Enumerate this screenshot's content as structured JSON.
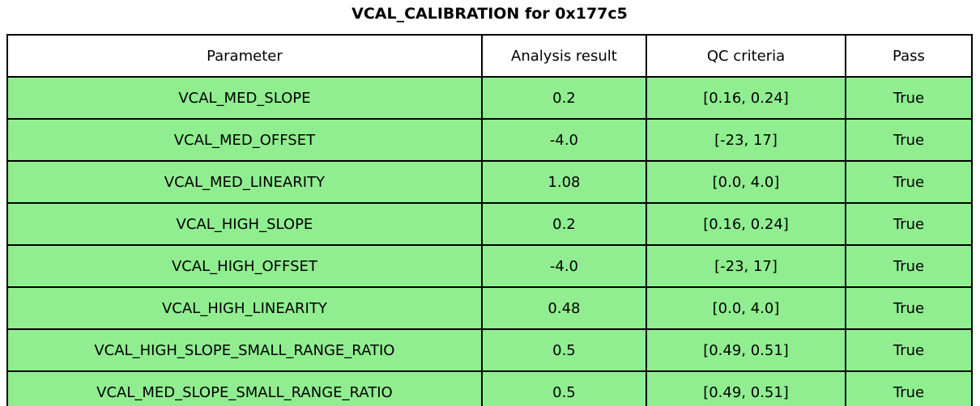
{
  "title": "VCAL_CALIBRATION for 0x177c5",
  "chart_data": {
    "type": "table",
    "title": "VCAL_CALIBRATION for 0x177c5",
    "columns": [
      "Parameter",
      "Analysis result",
      "QC criteria",
      "Pass"
    ],
    "rows": [
      [
        "VCAL_MED_SLOPE",
        "0.2",
        "[0.16, 0.24]",
        "True"
      ],
      [
        "VCAL_MED_OFFSET",
        "-4.0",
        "[-23, 17]",
        "True"
      ],
      [
        "VCAL_MED_LINEARITY",
        "1.08",
        "[0.0, 4.0]",
        "True"
      ],
      [
        "VCAL_HIGH_SLOPE",
        "0.2",
        "[0.16, 0.24]",
        "True"
      ],
      [
        "VCAL_HIGH_OFFSET",
        "-4.0",
        "[-23, 17]",
        "True"
      ],
      [
        "VCAL_HIGH_LINEARITY",
        "0.48",
        "[0.0, 4.0]",
        "True"
      ],
      [
        "VCAL_HIGH_SLOPE_SMALL_RANGE_RATIO",
        "0.5",
        "[0.49, 0.51]",
        "True"
      ],
      [
        "VCAL_MED_SLOPE_SMALL_RANGE_RATIO",
        "0.5",
        "[0.49, 0.51]",
        "True"
      ]
    ],
    "layout": {
      "legend": "none",
      "grid": "cell-borders",
      "header_position": "top"
    },
    "colors": {
      "pass_row_bg": "#90EE90",
      "header_bg": "#FFFFFF",
      "border": "#000000",
      "text": "#000000"
    }
  }
}
